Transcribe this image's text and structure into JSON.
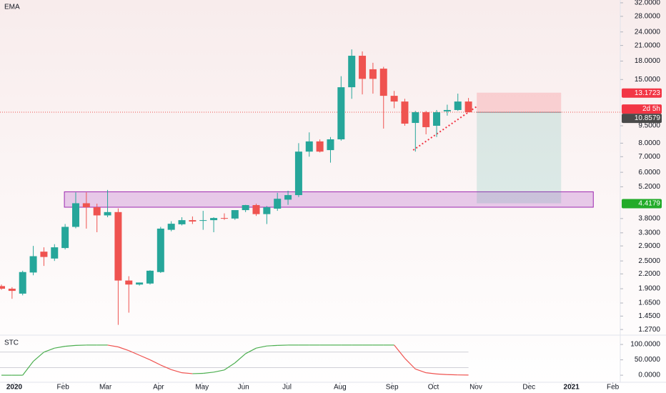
{
  "chart_data": [
    {
      "type": "candlestick",
      "title": "EMA",
      "open": [
        1.95,
        1.9,
        1.81,
        2.23,
        2.74,
        2.56,
        2.84,
        3.5,
        4.42,
        4.25,
        3.92,
        4.05,
        2.06,
        1.98,
        2.0,
        2.24,
        3.4,
        3.59,
        3.74,
        3.72,
        3.74,
        3.82,
        3.8,
        4.13,
        4.34,
        3.97,
        4.19,
        4.58,
        4.79,
        7.36,
        8.14,
        7.47,
        8.31,
        13.9,
        18.97,
        16.6,
        16.7,
        12.77,
        12.07,
        9.77,
        10.86,
        9.5,
        10.95,
        11.1,
        12.07
      ],
      "high": [
        1.98,
        1.93,
        2.27,
        2.9,
        2.86,
        2.95,
        3.6,
        4.92,
        4.92,
        4.4,
        5.04,
        4.2,
        2.15,
        2.02,
        2.28,
        3.5,
        3.7,
        3.85,
        3.88,
        4.1,
        3.85,
        4.0,
        4.1,
        4.35,
        4.4,
        4.3,
        4.9,
        5.0,
        8.0,
        8.9,
        8.3,
        8.5,
        15.5,
        20.2,
        19.8,
        17.7,
        17.0,
        13.4,
        12.4,
        11.0,
        11.0,
        11.1,
        11.7,
        13.05,
        12.5
      ],
      "low": [
        1.88,
        1.72,
        1.78,
        2.17,
        2.38,
        2.5,
        2.8,
        3.45,
        3.44,
        3.32,
        3.85,
        1.33,
        1.5,
        1.96,
        1.98,
        2.22,
        3.35,
        3.55,
        3.6,
        3.4,
        3.32,
        3.75,
        3.75,
        4.05,
        3.9,
        3.6,
        4.1,
        4.35,
        4.7,
        7.0,
        7.3,
        6.6,
        8.2,
        12.4,
        12.95,
        13.05,
        9.24,
        11.3,
        9.5,
        7.36,
        8.73,
        8.5,
        10.5,
        11.0,
        10.85
      ],
      "close": [
        1.9,
        1.86,
        2.24,
        2.62,
        2.6,
        2.86,
        3.5,
        4.42,
        4.25,
        3.92,
        4.05,
        2.06,
        1.98,
        2.02,
        2.27,
        3.44,
        3.61,
        3.74,
        3.69,
        3.74,
        3.82,
        3.8,
        4.13,
        4.34,
        3.97,
        4.25,
        4.62,
        4.79,
        7.36,
        8.14,
        7.36,
        8.31,
        13.9,
        18.97,
        15.1,
        15.1,
        12.77,
        12.07,
        9.7,
        10.86,
        9.37,
        10.86,
        11.1,
        12.07,
        10.86
      ],
      "up_color": "#26a69a",
      "down_color": "#ef5350",
      "log_scale": true,
      "ylim": [
        1.21,
        32.9
      ],
      "yticks": [
        {
          "value": 32,
          "label": "32.0000"
        },
        {
          "value": 28,
          "label": "28.0000"
        },
        {
          "value": 24,
          "label": "24.0000"
        },
        {
          "value": 21,
          "label": "21.0000"
        },
        {
          "value": 18,
          "label": "18.0000"
        },
        {
          "value": 15,
          "label": "15.0000"
        },
        {
          "value": 9.5,
          "label": "9.5000"
        },
        {
          "value": 8,
          "label": "8.0000"
        },
        {
          "value": 7,
          "label": "7.0000"
        },
        {
          "value": 6,
          "label": "6.0000"
        },
        {
          "value": 5.2,
          "label": "5.2000"
        },
        {
          "value": 3.8,
          "label": "3.8000"
        },
        {
          "value": 3.3,
          "label": "3.3000"
        },
        {
          "value": 2.9,
          "label": "2.9000"
        },
        {
          "value": 2.5,
          "label": "2.5000"
        },
        {
          "value": 2.2,
          "label": "2.2000"
        },
        {
          "value": 1.9,
          "label": "1.9000"
        },
        {
          "value": 1.65,
          "label": "1.6500"
        },
        {
          "value": 1.45,
          "label": "1.4500"
        },
        {
          "value": 1.27,
          "label": "1.2700"
        }
      ],
      "xlim": [
        -0.135,
        58.3
      ],
      "xticks": [
        {
          "value": 1.21,
          "label": "2020"
        },
        {
          "value": 5.8,
          "label": "Feb"
        },
        {
          "value": 9.8,
          "label": "Mar"
        },
        {
          "value": 14.8,
          "label": "Apr"
        },
        {
          "value": 18.9,
          "label": "May"
        },
        {
          "value": 22.8,
          "label": "Jun"
        },
        {
          "value": 26.9,
          "label": "Jul"
        },
        {
          "value": 31.9,
          "label": "Aug"
        },
        {
          "value": 36.8,
          "label": "Sep"
        },
        {
          "value": 40.7,
          "label": "Oct"
        },
        {
          "value": 44.7,
          "label": "Nov"
        },
        {
          "value": 49.7,
          "label": "Dec"
        },
        {
          "value": 53.7,
          "label": "2021"
        },
        {
          "value": 57.6,
          "label": "Feb"
        }
      ],
      "zone": {
        "ylim": [
          4.25,
          4.95
        ],
        "xlim": [
          5.93,
          55.76
        ],
        "color": "#ce93d8"
      },
      "position": {
        "stop": 13.1723,
        "entry": 10.8579,
        "target": 4.4179,
        "xlim": [
          44.78,
          52.73
        ],
        "countdown": "2d 5h"
      },
      "trendline": {
        "x": [
          38.79,
          44.85
        ],
        "y": [
          7.47,
          11.55
        ],
        "color": "#f23645"
      }
    },
    {
      "type": "line",
      "title": "STC",
      "values": [
        0,
        0,
        0,
        45,
        75,
        88,
        94,
        97,
        98,
        98,
        98,
        92,
        80,
        65,
        50,
        33,
        18,
        8,
        5,
        6,
        10,
        17,
        40,
        70,
        88,
        95,
        97,
        98,
        98,
        98,
        98,
        98,
        98,
        98,
        98,
        98,
        98,
        98,
        55,
        20,
        8,
        4,
        2,
        1,
        0.5
      ],
      "up_color": "#4caf50",
      "down_color": "#ef5350",
      "ylim": [
        -23,
        128
      ],
      "yticks": [
        {
          "value": 100,
          "label": "100.0000"
        },
        {
          "value": 50,
          "label": "50.0000"
        },
        {
          "value": 0,
          "label": "0.0000"
        }
      ],
      "levels": [
        75,
        25
      ]
    }
  ]
}
